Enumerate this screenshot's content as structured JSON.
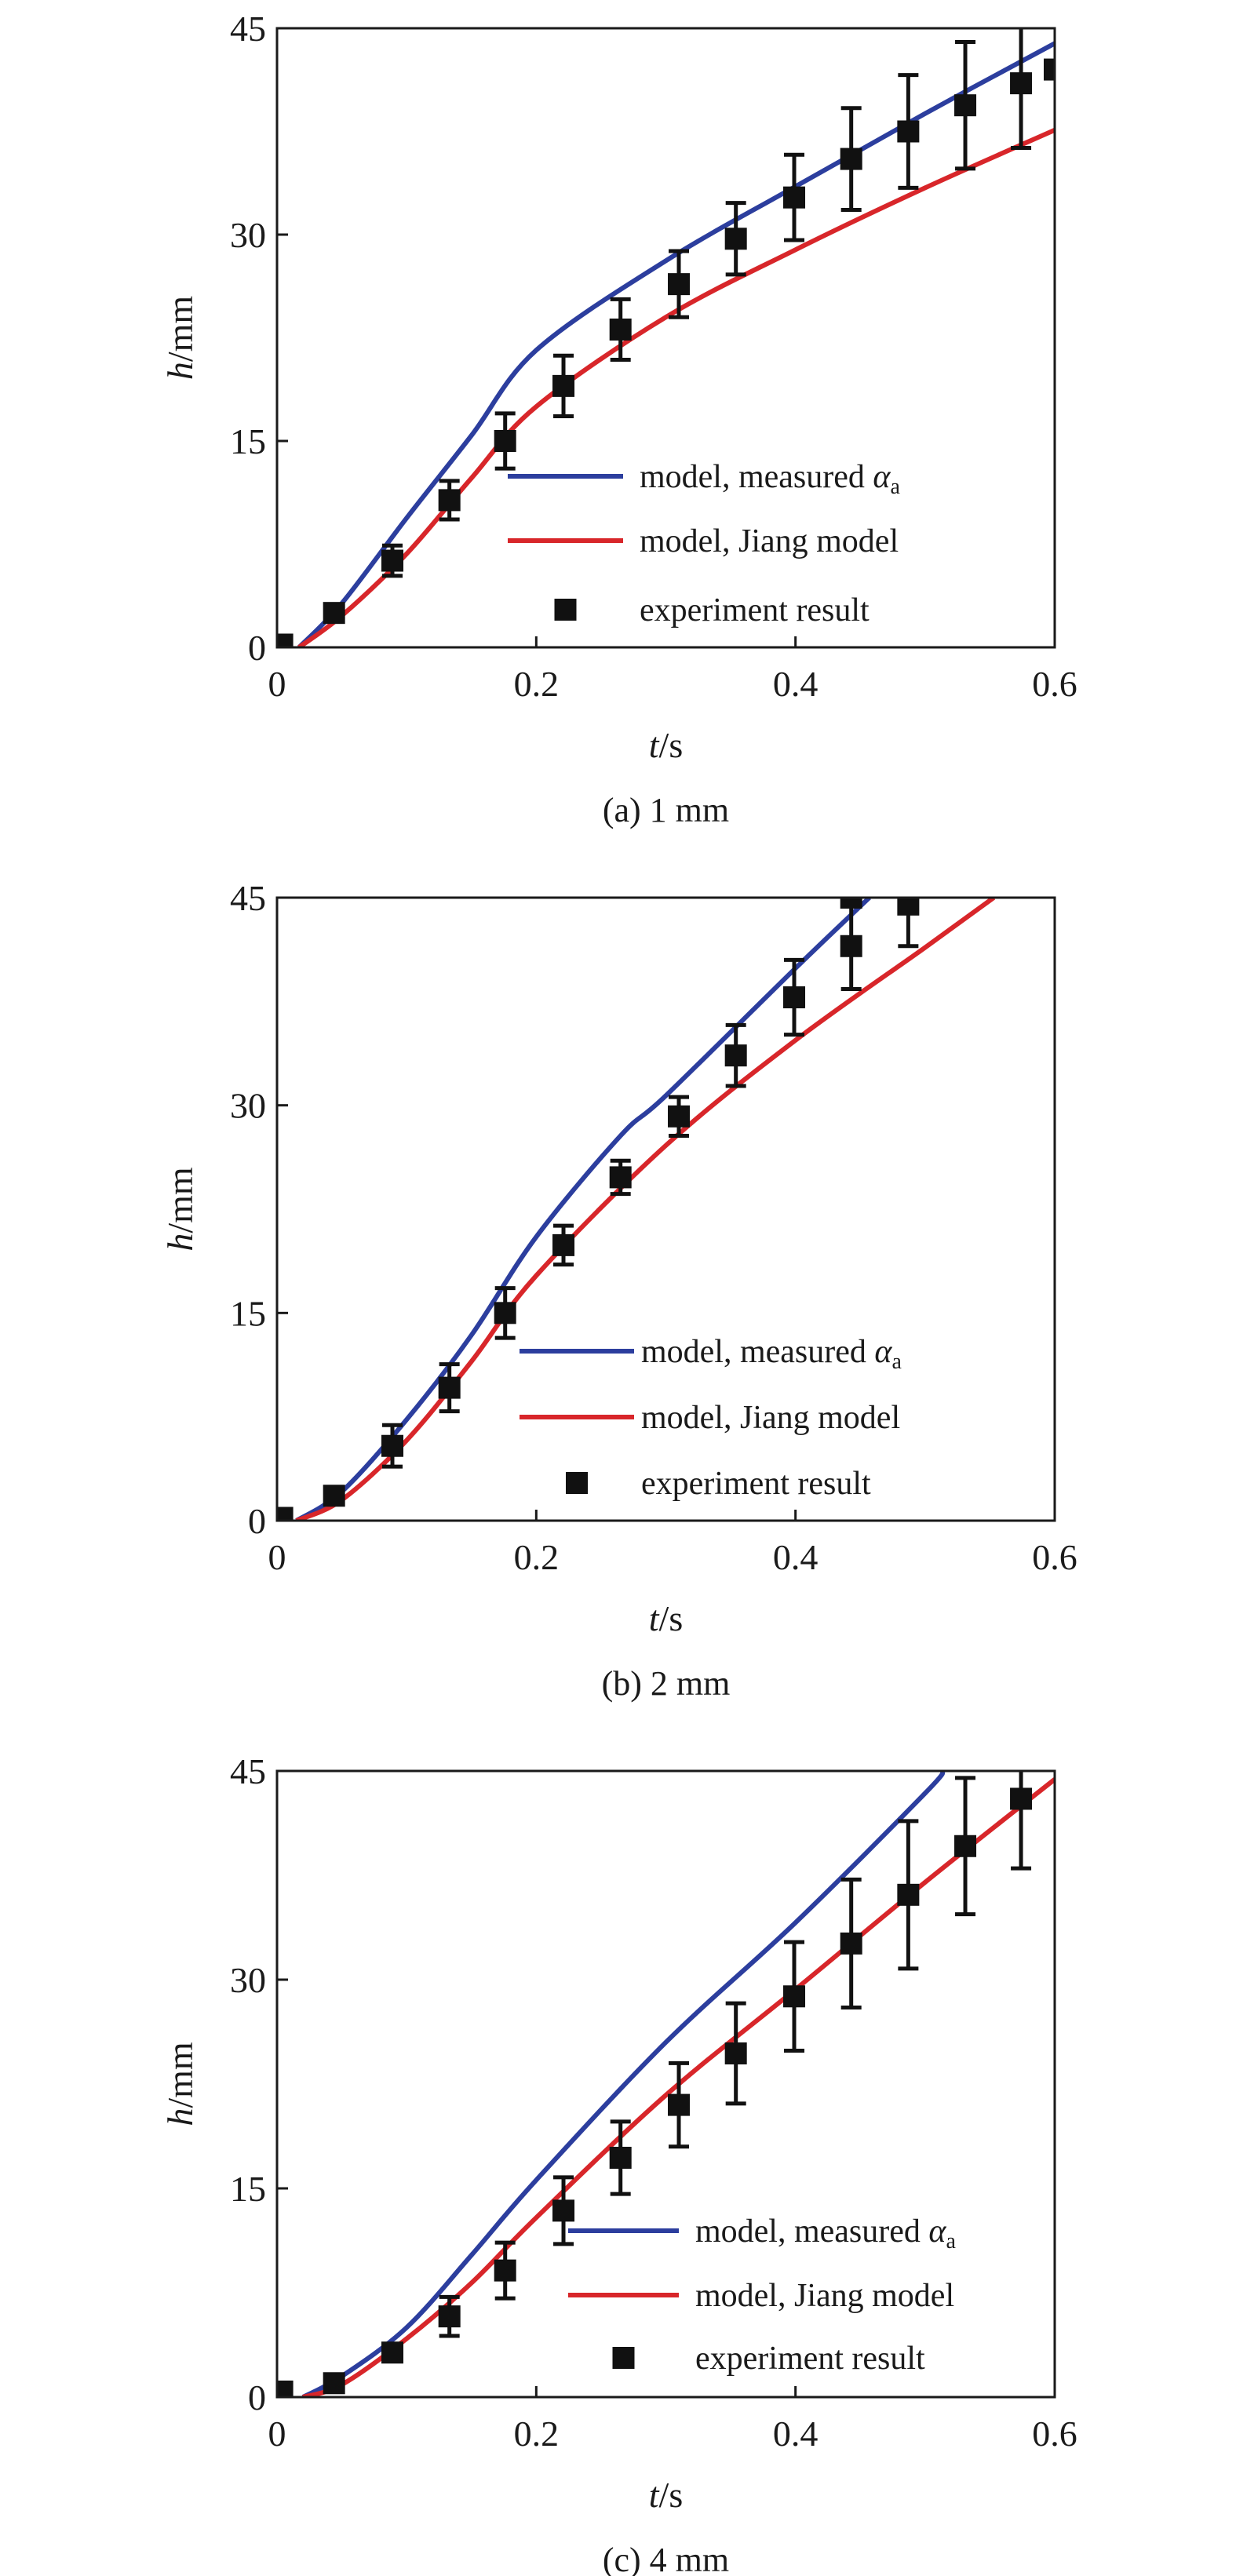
{
  "colors": {
    "measured": "#2c3e9e",
    "jiang": "#d8262a",
    "experiment": "#111111",
    "axis": "#1a1a1a"
  },
  "chart_data": [
    {
      "type": "line",
      "caption": "(a) 1 mm",
      "xlabel_italic": "t",
      "xlabel_unit": "/s",
      "ylabel_italic": "h",
      "ylabel_unit": "/mm",
      "xlim": [
        0,
        0.6
      ],
      "ylim": [
        0,
        45
      ],
      "xticks": [
        "0",
        "0.2",
        "0.4",
        "0.6"
      ],
      "yticks": [
        "0",
        "15",
        "30",
        "45"
      ],
      "grid": false,
      "legend_placement": "bottom-right",
      "legend": {
        "measured": "model, measured ",
        "measured_symbol": "α",
        "measured_sub": "a",
        "jiang": "model, Jiang model",
        "experiment": "experiment result"
      },
      "series": [
        {
          "name": "model, measured αa",
          "x": [
            0.017,
            0.05,
            0.1,
            0.15,
            0.2,
            0.3,
            0.4,
            0.5,
            0.6
          ],
          "y": [
            0,
            3.2,
            9.4,
            15.4,
            21.6,
            28.1,
            33.5,
            38.8,
            43.9
          ]
        },
        {
          "name": "model, Jiang model",
          "x": [
            0.017,
            0.05,
            0.1,
            0.15,
            0.2,
            0.3,
            0.4,
            0.5,
            0.6
          ],
          "y": [
            0,
            2.3,
            6.8,
            12.3,
            17.5,
            24.0,
            28.9,
            33.4,
            37.6
          ]
        }
      ],
      "experiment": {
        "name": "experiment result",
        "x": [
          0.004,
          0.044,
          0.089,
          0.133,
          0.176,
          0.221,
          0.265,
          0.31,
          0.354,
          0.399,
          0.443,
          0.487,
          0.531,
          0.574,
          0.6
        ],
        "y": [
          0.2,
          2.5,
          6.3,
          10.7,
          15.0,
          19.0,
          23.1,
          26.4,
          29.7,
          32.7,
          35.5,
          37.5,
          39.4,
          41.0,
          42.0
        ],
        "err": [
          0,
          0.5,
          1.1,
          1.4,
          2.0,
          2.2,
          2.2,
          2.4,
          2.6,
          3.1,
          3.7,
          4.1,
          4.6,
          4.7,
          0
        ]
      }
    },
    {
      "type": "line",
      "caption": "(b) 2 mm",
      "xlabel_italic": "t",
      "xlabel_unit": "/s",
      "ylabel_italic": "h",
      "ylabel_unit": "/mm",
      "xlim": [
        0,
        0.6
      ],
      "ylim": [
        0,
        45
      ],
      "xticks": [
        "0",
        "0.2",
        "0.4",
        "0.6"
      ],
      "yticks": [
        "0",
        "15",
        "30",
        "45"
      ],
      "grid": false,
      "legend_placement": "bottom-right",
      "legend": {
        "measured": "model, measured ",
        "measured_symbol": "α",
        "measured_sub": "a",
        "jiang": "model, Jiang model",
        "experiment": "experiment result"
      },
      "series": [
        {
          "name": "model, measured αa",
          "x": [
            0.015,
            0.05,
            0.1,
            0.15,
            0.2,
            0.265,
            0.3,
            0.4,
            0.457
          ],
          "y": [
            0,
            2.1,
            7.3,
            13.4,
            20.5,
            27.8,
            30.7,
            39.9,
            45
          ]
        },
        {
          "name": "model, Jiang model",
          "x": [
            0.015,
            0.05,
            0.1,
            0.15,
            0.2,
            0.3,
            0.4,
            0.5,
            0.553
          ],
          "y": [
            0,
            1.5,
            5.8,
            11.5,
            17.7,
            27.1,
            34.7,
            41.4,
            45
          ]
        }
      ],
      "experiment": {
        "name": "experiment result",
        "x": [
          0.004,
          0.044,
          0.089,
          0.133,
          0.176,
          0.221,
          0.265,
          0.31,
          0.354,
          0.399,
          0.443,
          0.443,
          0.487
        ],
        "y": [
          0.2,
          1.8,
          5.4,
          9.6,
          15.0,
          19.9,
          24.8,
          29.2,
          33.6,
          37.8,
          41.5,
          45.0,
          44.5
        ],
        "err": [
          0,
          0.5,
          1.5,
          1.7,
          1.8,
          1.4,
          1.2,
          1.4,
          2.2,
          2.7,
          3.1,
          0,
          3.0
        ]
      }
    },
    {
      "type": "line",
      "caption": "(c) 4 mm",
      "xlabel_italic": "t",
      "xlabel_unit": "/s",
      "ylabel_italic": "h",
      "ylabel_unit": "/mm",
      "xlim": [
        0,
        0.6
      ],
      "ylim": [
        0,
        45
      ],
      "xticks": [
        "0",
        "0.2",
        "0.4",
        "0.6"
      ],
      "yticks": [
        "0",
        "15",
        "30",
        "45"
      ],
      "grid": false,
      "legend_placement": "bottom-right",
      "legend": {
        "measured": "model, measured ",
        "measured_symbol": "α",
        "measured_sub": "a",
        "jiang": "model, Jiang model",
        "experiment": "experiment result"
      },
      "series": [
        {
          "name": "model, measured αa",
          "x": [
            0.02,
            0.05,
            0.1,
            0.15,
            0.2,
            0.3,
            0.4,
            0.5,
            0.514
          ],
          "y": [
            0,
            1.5,
            5.0,
            10.2,
            15.6,
            25.5,
            34.1,
            43.4,
            45
          ]
        },
        {
          "name": "model, Jiang model",
          "x": [
            0.02,
            0.05,
            0.1,
            0.15,
            0.2,
            0.3,
            0.4,
            0.5,
            0.6
          ],
          "y": [
            0,
            0.9,
            4.2,
            8.2,
            12.9,
            21.7,
            29.3,
            37.0,
            44.4
          ]
        }
      ],
      "experiment": {
        "name": "experiment result",
        "x": [
          0.004,
          0.044,
          0.089,
          0.133,
          0.176,
          0.221,
          0.265,
          0.31,
          0.354,
          0.399,
          0.443,
          0.487,
          0.531,
          0.574
        ],
        "y": [
          0.4,
          1.0,
          3.2,
          5.8,
          9.1,
          13.4,
          17.2,
          21.0,
          24.7,
          28.8,
          32.6,
          36.1,
          39.6,
          43.0
        ],
        "err": [
          0,
          0.4,
          0.6,
          1.4,
          2.0,
          2.4,
          2.6,
          3.0,
          3.6,
          3.9,
          4.6,
          5.3,
          4.9,
          5.0
        ]
      }
    }
  ]
}
